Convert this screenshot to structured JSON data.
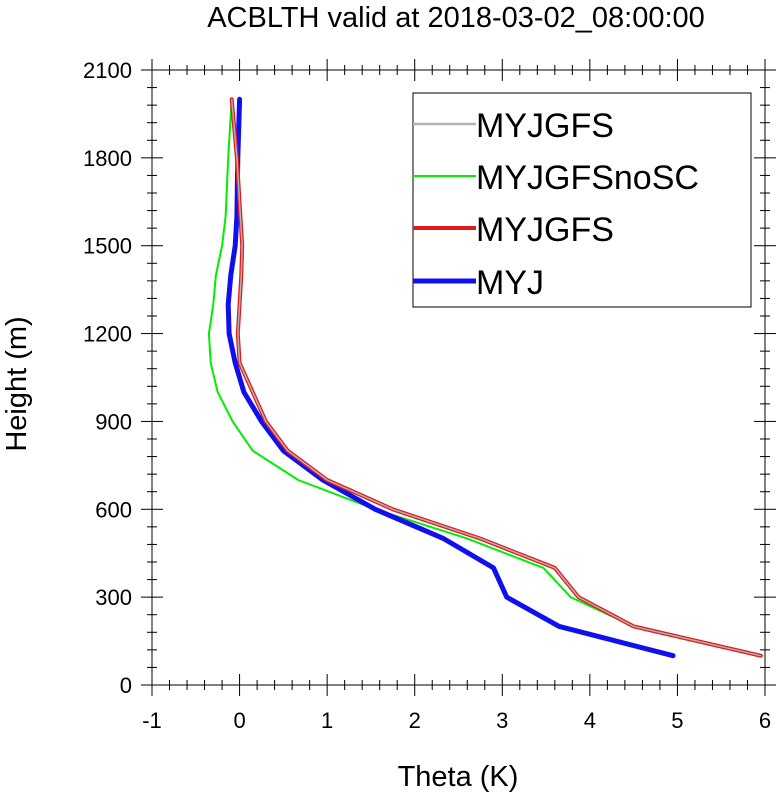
{
  "chart_data": {
    "type": "line",
    "title": "ACBLTH valid at 2018-03-02_08:00:00",
    "xlabel": "Theta (K)",
    "ylabel": "Height (m)",
    "xlim": [
      -1,
      6
    ],
    "ylim": [
      0,
      2100
    ],
    "xticks": [
      -1,
      0,
      1,
      2,
      3,
      4,
      5,
      6
    ],
    "yticks": [
      0,
      300,
      600,
      900,
      1200,
      1500,
      1800,
      2100
    ],
    "xtick_labels": [
      "-1",
      "0",
      "1",
      "2",
      "3",
      "4",
      "5",
      "6"
    ],
    "ytick_labels": [
      "0",
      "300",
      "600",
      "900",
      "1200",
      "1500",
      "1800",
      "2100"
    ],
    "grid": false,
    "legend_position": "top-right",
    "series": [
      {
        "name": "MYJGFS",
        "color": "#b3b3b3",
        "x": [
          5.95,
          4.5,
          3.87,
          3.6,
          2.75,
          1.75,
          1.0,
          0.55,
          0.3,
          0.15,
          0.0,
          -0.02,
          0.0,
          0.02,
          0.03,
          0.01,
          -0.03,
          -0.09
        ],
        "y": [
          100,
          200,
          300,
          400,
          500,
          600,
          700,
          800,
          900,
          1000,
          1100,
          1200,
          1300,
          1400,
          1500,
          1600,
          1800,
          2000
        ]
      },
      {
        "name": "MYJGFSnoSC",
        "color": "#00ee00",
        "x": [
          5.97,
          4.5,
          3.78,
          3.47,
          2.6,
          1.55,
          0.67,
          0.15,
          -0.08,
          -0.25,
          -0.33,
          -0.35,
          -0.3,
          -0.27,
          -0.2,
          -0.16,
          -0.13,
          -0.09
        ],
        "y": [
          100,
          200,
          300,
          400,
          500,
          600,
          700,
          800,
          900,
          1000,
          1100,
          1200,
          1300,
          1400,
          1500,
          1600,
          1800,
          2000
        ]
      },
      {
        "name": "MYJGFS",
        "color": "#e31a1c",
        "x": [
          5.95,
          4.5,
          3.87,
          3.6,
          2.75,
          1.75,
          1.0,
          0.55,
          0.3,
          0.15,
          0.0,
          -0.02,
          0.0,
          0.02,
          0.03,
          0.01,
          -0.03,
          -0.09
        ],
        "y": [
          100,
          200,
          300,
          400,
          500,
          600,
          700,
          800,
          900,
          1000,
          1100,
          1200,
          1300,
          1400,
          1500,
          1600,
          1800,
          2000
        ]
      },
      {
        "name": "MYJ",
        "color": "#1010ee",
        "x": [
          4.95,
          3.65,
          3.05,
          2.9,
          2.33,
          1.55,
          0.95,
          0.5,
          0.25,
          0.05,
          -0.05,
          -0.12,
          -0.13,
          -0.1,
          -0.05,
          -0.03,
          -0.02,
          0.0
        ],
        "y": [
          100,
          200,
          300,
          400,
          500,
          600,
          700,
          800,
          900,
          1000,
          1100,
          1200,
          1300,
          1400,
          1500,
          1600,
          1800,
          2000
        ]
      }
    ]
  }
}
